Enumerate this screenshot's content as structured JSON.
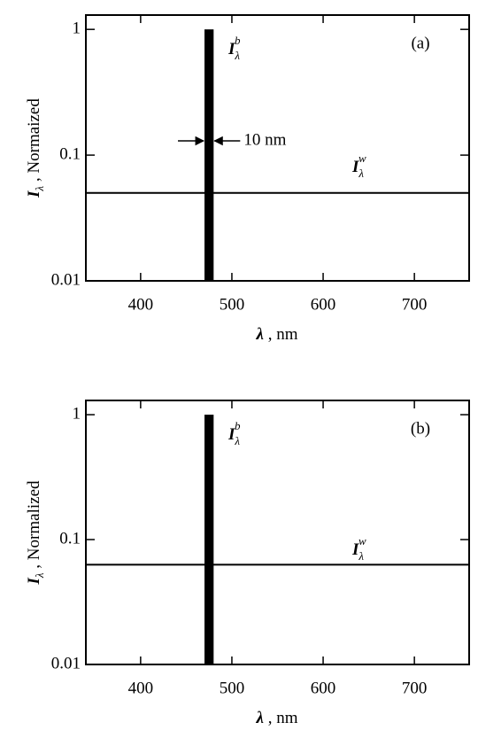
{
  "chart_data": [
    {
      "type": "bar",
      "panel_label": "(a)",
      "xlim": [
        340,
        760
      ],
      "xticks": [
        400,
        500,
        600,
        700
      ],
      "ylim": [
        0.01,
        1.3
      ],
      "yticks": [
        0.01,
        0.1,
        1
      ],
      "log_y": true,
      "x_label": {
        "symbol": "λ",
        "text": " ,  nm"
      },
      "y_label": {
        "symbol": "I",
        "subscript": "λ",
        "text": " , Normaized"
      },
      "bar": {
        "x": 475,
        "width": 10,
        "value": 1,
        "color": "#000000"
      },
      "bar_label": {
        "symbol": "I",
        "subscript": "λ",
        "superscript": "b"
      },
      "hline": {
        "value": 0.05,
        "color": "#000000"
      },
      "hline_label": {
        "symbol": "I",
        "subscript": "λ",
        "superscript": "w"
      },
      "width_annotation": "10 nm"
    },
    {
      "type": "bar",
      "panel_label": "(b)",
      "xlim": [
        340,
        760
      ],
      "xticks": [
        400,
        500,
        600,
        700
      ],
      "ylim": [
        0.01,
        1.3
      ],
      "yticks": [
        0.01,
        0.1,
        1
      ],
      "log_y": true,
      "x_label": {
        "symbol": "λ",
        "text": " , nm"
      },
      "y_label": {
        "symbol": "I",
        "subscript": "λ",
        "text": " ,  Normalized"
      },
      "bar": {
        "x": 475,
        "width": 10,
        "value": 1,
        "color": "#000000"
      },
      "bar_label": {
        "symbol": "I",
        "subscript": "λ",
        "superscript": "b"
      },
      "hline": {
        "value": 0.063,
        "color": "#000000"
      },
      "hline_label": {
        "symbol": "I",
        "subscript": "λ",
        "superscript": "w"
      }
    }
  ]
}
